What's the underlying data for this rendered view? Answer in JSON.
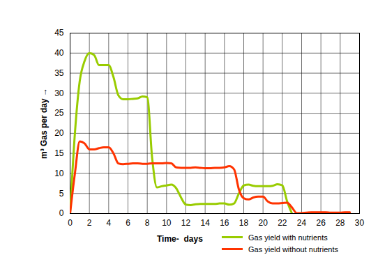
{
  "chart_data": {
    "type": "line",
    "x_label": "Time-  days",
    "y_label": "m³ Gas per day",
    "x": [
      0,
      0.5,
      1,
      1.5,
      2,
      2.5,
      3,
      3.5,
      4,
      4.5,
      5,
      5.5,
      6,
      6.5,
      7,
      7.5,
      8,
      8.5,
      9,
      9.5,
      10,
      10.5,
      11,
      11.5,
      12,
      12.5,
      13,
      13.5,
      14,
      14.5,
      15,
      15.5,
      16,
      16.5,
      17,
      17.5,
      18,
      18.5,
      19,
      19.5,
      20,
      20.5,
      21,
      21.5,
      22,
      22.5,
      23,
      23.5,
      24,
      24.5,
      25,
      25.5,
      26,
      26.5,
      27,
      27.5,
      28,
      28.5,
      29
    ],
    "series": [
      {
        "name": "Gas yield with nutrients",
        "color": "#99CC00",
        "values": [
          0,
          20,
          33,
          38,
          40,
          39.5,
          37,
          37,
          37,
          34,
          29.5,
          28.5,
          28.5,
          28.6,
          28.7,
          29.2,
          29,
          14,
          6.5,
          6.8,
          7,
          7.2,
          6.3,
          4,
          2.2,
          2.1,
          2.3,
          2.4,
          2.4,
          2.4,
          2.4,
          2.5,
          2.5,
          2.2,
          2.5,
          5,
          7,
          7.2,
          6.9,
          6.8,
          6.8,
          6.8,
          6.9,
          7.3,
          7,
          3,
          0,
          null,
          null,
          null,
          null,
          null,
          null,
          null,
          null,
          null,
          null,
          null,
          null
        ]
      },
      {
        "name": "Gas yield without nutrients",
        "color": "#FF3300",
        "values": [
          0,
          10,
          18,
          17.5,
          16,
          16,
          16.3,
          16.5,
          16.5,
          15,
          12.5,
          12.3,
          12.4,
          12.5,
          12.5,
          12.4,
          12.4,
          12.5,
          12.5,
          12.5,
          12.6,
          12.5,
          11.5,
          11.4,
          11.4,
          11.4,
          11.5,
          11.4,
          11.3,
          11.3,
          11.4,
          11.4,
          11.5,
          11.8,
          11,
          6,
          3.8,
          3.5,
          4,
          4.2,
          4.2,
          3,
          2.5,
          2.5,
          2.6,
          2.7,
          1.5,
          0.1,
          0.1,
          0.2,
          0.3,
          0.3,
          0.3,
          0.3,
          0.2,
          0.2,
          0.2,
          0.3,
          0.3
        ]
      }
    ],
    "xlim": [
      0,
      30
    ],
    "xticks": [
      0,
      2,
      4,
      6,
      8,
      10,
      12,
      14,
      16,
      18,
      20,
      22,
      24,
      26,
      28,
      30
    ],
    "ylim": [
      0,
      45
    ],
    "yticks": [
      0,
      5,
      10,
      15,
      20,
      25,
      30,
      35,
      40,
      45
    ],
    "grid": true,
    "legend": "bottom-right"
  }
}
